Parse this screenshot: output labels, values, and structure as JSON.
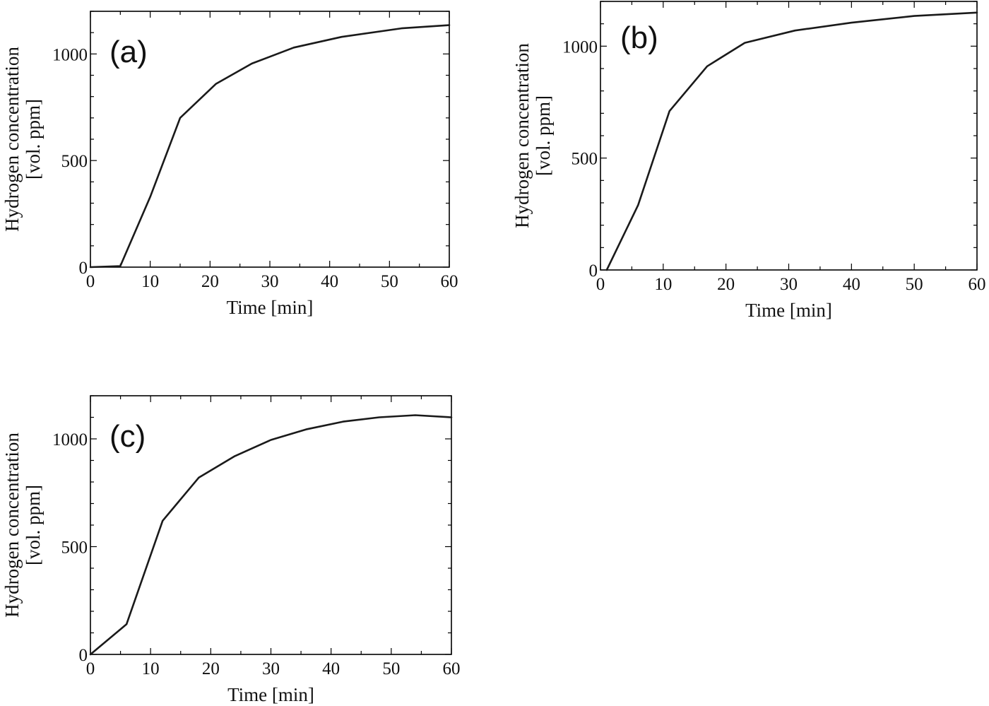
{
  "chart_data": [
    {
      "type": "line",
      "panel_label": "(a)",
      "xlabel": "Time [min]",
      "ylabel_line1": "Hydrogen concentration",
      "ylabel_line2": "[vol. ppm]",
      "xlim": [
        0,
        60
      ],
      "ylim": [
        0,
        1200
      ],
      "x_ticks": [
        0,
        10,
        20,
        30,
        40,
        50,
        60
      ],
      "y_ticks": [
        0,
        500,
        1000
      ],
      "x_tick_labels": [
        "0",
        "10",
        "20",
        "30",
        "40",
        "50",
        "60"
      ],
      "y_tick_labels": [
        "0",
        "500",
        "1000"
      ],
      "legend": "none",
      "grid": false,
      "series": [
        {
          "name": "(a)",
          "x": [
            0,
            5,
            10,
            15,
            21,
            27,
            34,
            42,
            52,
            60
          ],
          "y": [
            0,
            5,
            330,
            700,
            860,
            955,
            1030,
            1080,
            1120,
            1135
          ]
        }
      ]
    },
    {
      "type": "line",
      "panel_label": "(b)",
      "xlabel": "Time [min]",
      "ylabel_line1": "Hydrogen concentration",
      "ylabel_line2": "[vol. ppm]",
      "xlim": [
        0,
        60
      ],
      "ylim": [
        0,
        1200
      ],
      "x_ticks": [
        0,
        10,
        20,
        30,
        40,
        50,
        60
      ],
      "y_ticks": [
        0,
        500,
        1000
      ],
      "x_tick_labels": [
        "0",
        "10",
        "20",
        "30",
        "40",
        "50",
        "60"
      ],
      "y_tick_labels": [
        "0",
        "500",
        "1000"
      ],
      "legend": "none",
      "grid": false,
      "series": [
        {
          "name": "(b)",
          "x": [
            1,
            6,
            11,
            17,
            23,
            31,
            40,
            50,
            60
          ],
          "y": [
            0,
            290,
            710,
            910,
            1015,
            1070,
            1105,
            1135,
            1150
          ]
        }
      ]
    },
    {
      "type": "line",
      "panel_label": "(c)",
      "xlabel": "Time [min]",
      "ylabel_line1": "Hydrogen concentration",
      "ylabel_line2": "[vol. ppm]",
      "xlim": [
        0,
        60
      ],
      "ylim": [
        0,
        1200
      ],
      "x_ticks": [
        0,
        10,
        20,
        30,
        40,
        50,
        60
      ],
      "y_ticks": [
        0,
        500,
        1000
      ],
      "x_tick_labels": [
        "0",
        "10",
        "20",
        "30",
        "40",
        "50",
        "60"
      ],
      "y_tick_labels": [
        "0",
        "500",
        "1000"
      ],
      "legend": "none",
      "grid": false,
      "series": [
        {
          "name": "(c)",
          "x": [
            0,
            6,
            12,
            18,
            24,
            30,
            36,
            42,
            48,
            54,
            60
          ],
          "y": [
            0,
            140,
            620,
            820,
            920,
            995,
            1045,
            1080,
            1100,
            1110,
            1100
          ]
        }
      ]
    }
  ]
}
